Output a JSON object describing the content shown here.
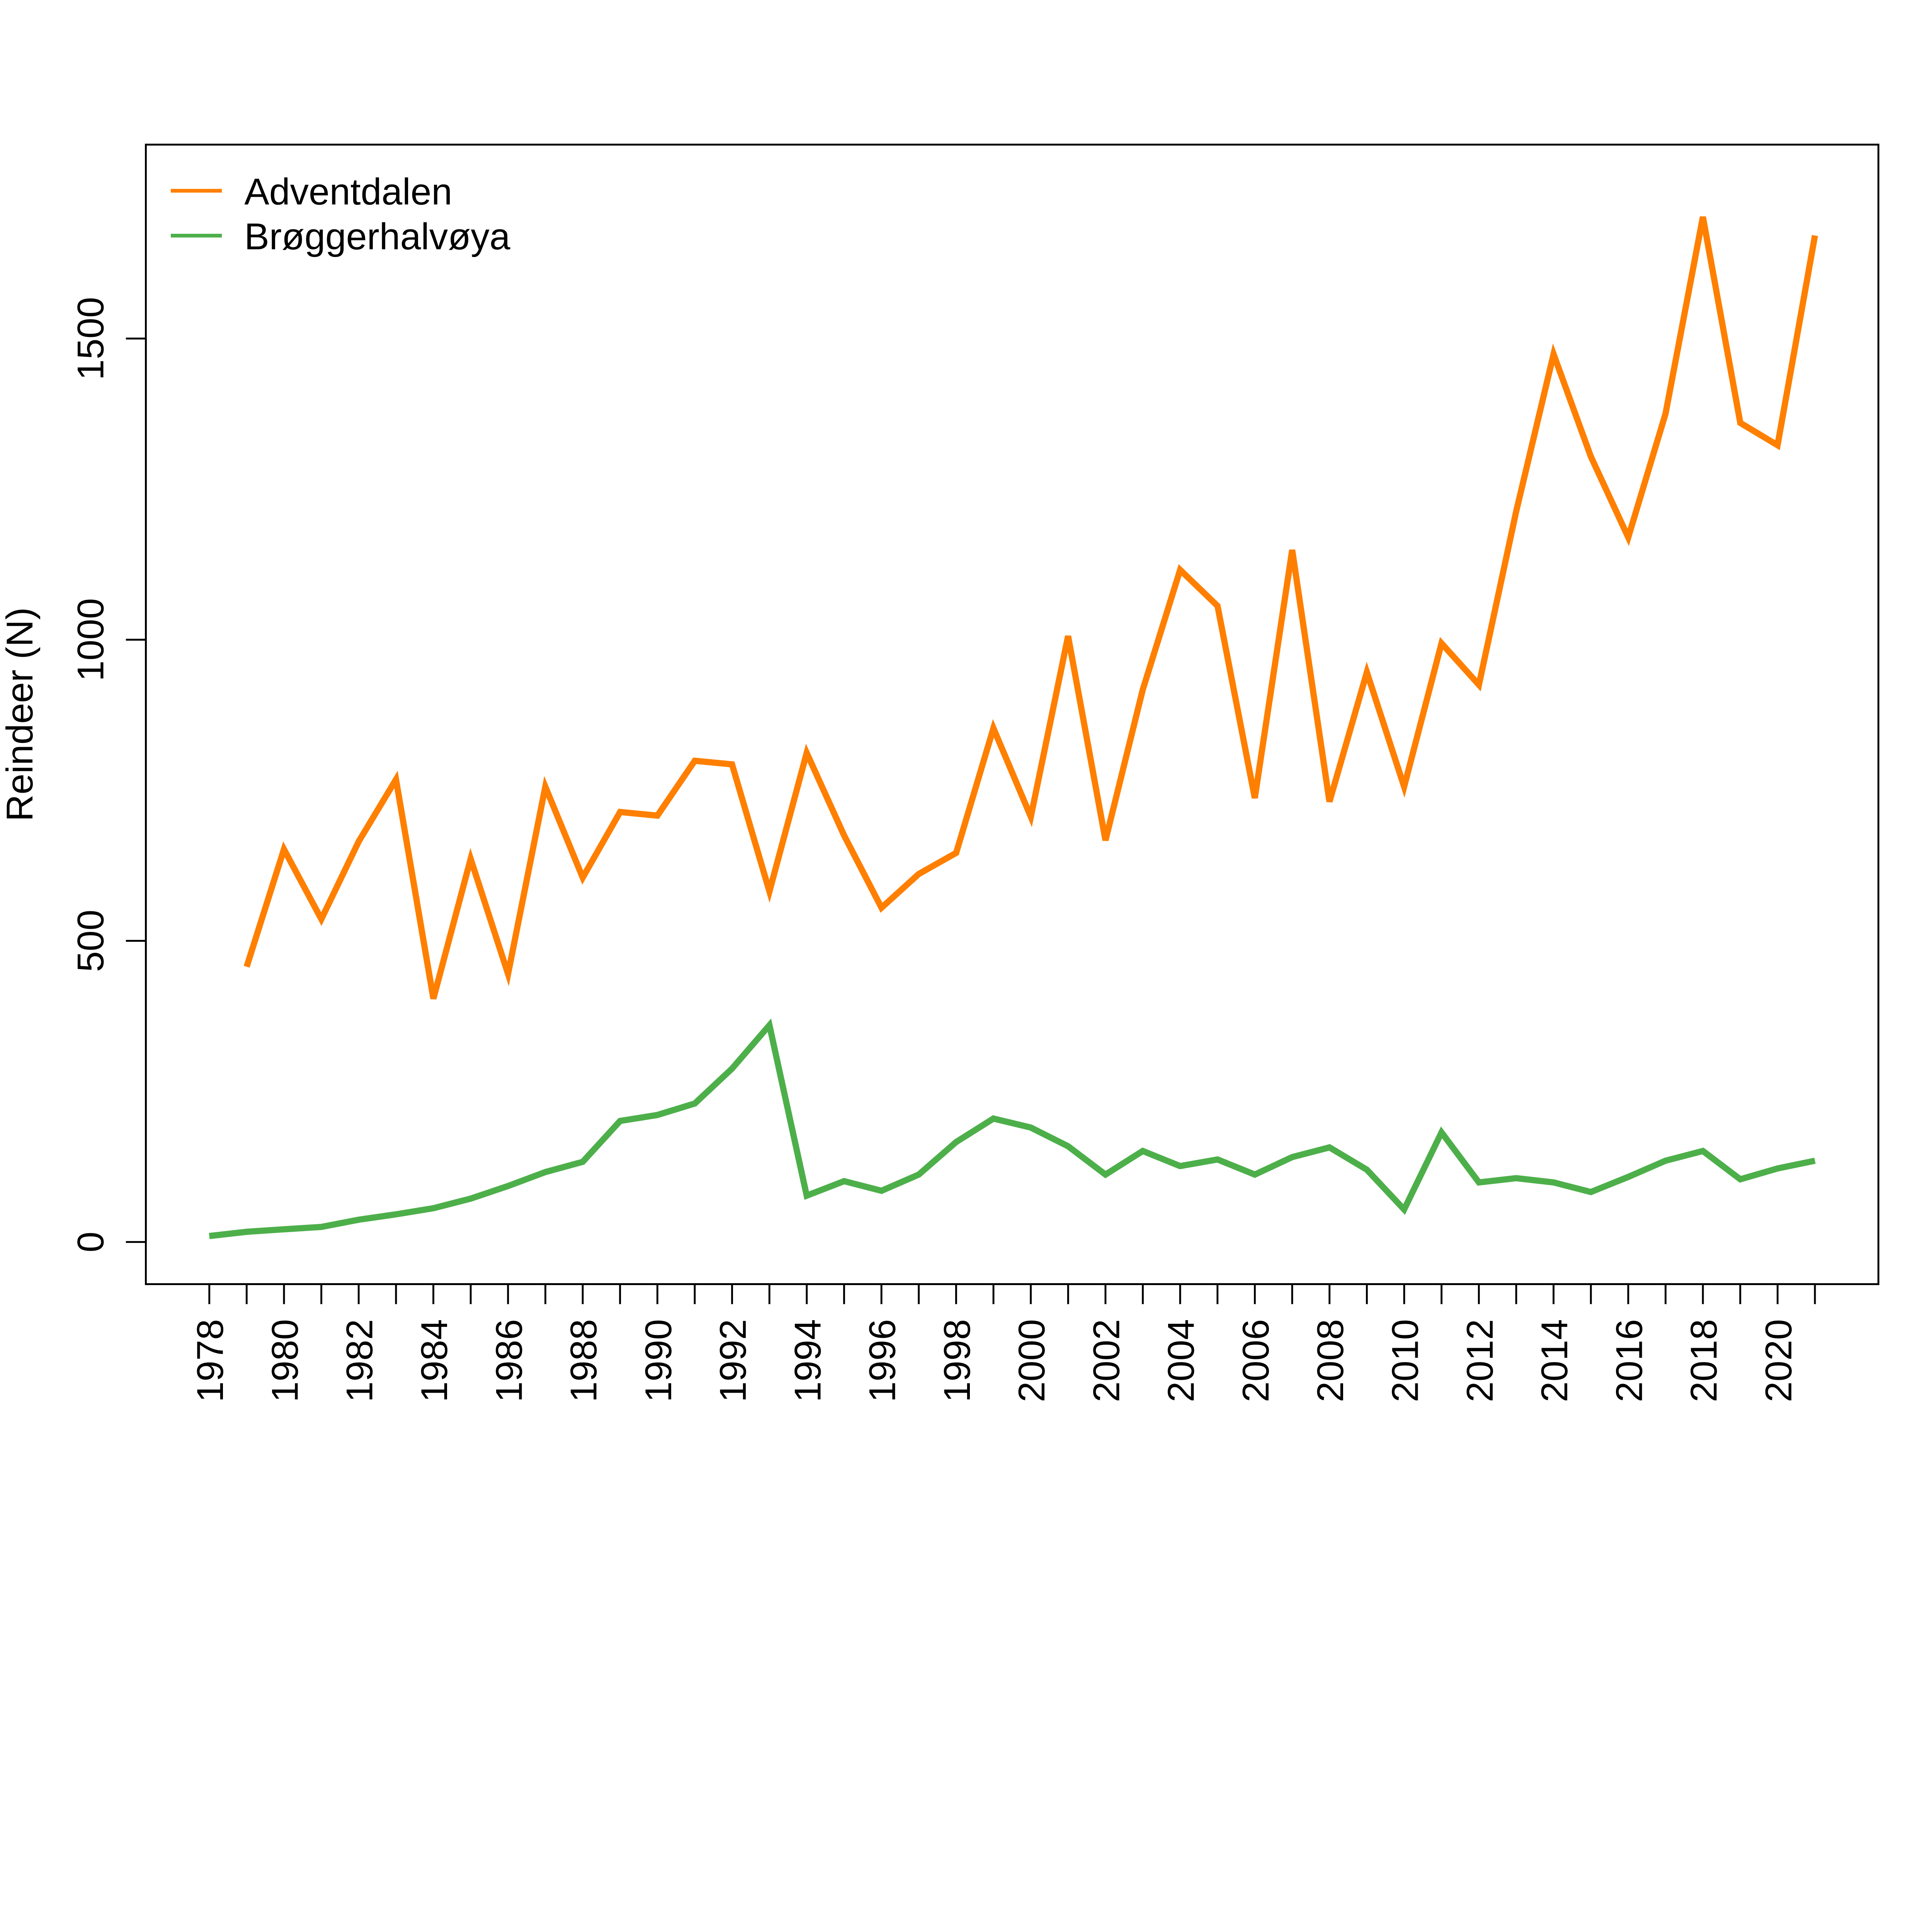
{
  "chart_data": {
    "type": "line",
    "title": "",
    "xlabel": "",
    "ylabel": "Reindeer (N)",
    "xlim": [
      1976.3,
      2022.7
    ],
    "ylim": [
      -70,
      1822
    ],
    "yticks": [
      0,
      500,
      1000,
      1500
    ],
    "xticks": [
      1978,
      1980,
      1982,
      1984,
      1986,
      1988,
      1990,
      1992,
      1994,
      1996,
      1998,
      2000,
      2002,
      2004,
      2006,
      2008,
      2010,
      2012,
      2014,
      2016,
      2018,
      2020
    ],
    "grid": false,
    "legend_position": "top-left",
    "series": [
      {
        "name": "Adventdalen",
        "color": "#FF7F00",
        "x": [
          1979,
          1980,
          1981,
          1982,
          1983,
          1984,
          1985,
          1986,
          1987,
          1988,
          1989,
          1990,
          1991,
          1992,
          1993,
          1994,
          1995,
          1996,
          1997,
          1998,
          1999,
          2000,
          2001,
          2002,
          2003,
          2004,
          2005,
          2006,
          2007,
          2008,
          2009,
          2010,
          2011,
          2012,
          2013,
          2014,
          2015,
          2016,
          2017,
          2018,
          2019,
          2020,
          2021
        ],
        "values": [
          457,
          652,
          536,
          665,
          768,
          404,
          636,
          445,
          756,
          605,
          714,
          708,
          799,
          793,
          582,
          812,
          675,
          555,
          611,
          646,
          853,
          706,
          1006,
          667,
          917,
          1116,
          1056,
          737,
          1149,
          731,
          946,
          756,
          994,
          925,
          1213,
          1474,
          1304,
          1170,
          1375,
          1702,
          1360,
          1323,
          1671
        ]
      },
      {
        "name": "Brøggerhalvøya",
        "color": "#4DAF4A",
        "x": [
          1978,
          1979,
          1980,
          1981,
          1982,
          1983,
          1984,
          1985,
          1986,
          1987,
          1988,
          1989,
          1990,
          1991,
          1992,
          1993,
          1994,
          1995,
          1996,
          1997,
          1998,
          1999,
          2000,
          2001,
          2002,
          2003,
          2004,
          2005,
          2006,
          2007,
          2008,
          2009,
          2010,
          2011,
          2012,
          2013,
          2014,
          2015,
          2016,
          2017,
          2018,
          2019,
          2020,
          2021
        ],
        "values": [
          10,
          17,
          21,
          25,
          37,
          46,
          56,
          72,
          93,
          116,
          133,
          201,
          211,
          230,
          288,
          360,
          77,
          101,
          85,
          112,
          166,
          205,
          190,
          159,
          112,
          151,
          126,
          137,
          112,
          141,
          157,
          120,
          54,
          182,
          99,
          106,
          99,
          83,
          108,
          135,
          151,
          104,
          122,
          135
        ]
      }
    ]
  }
}
